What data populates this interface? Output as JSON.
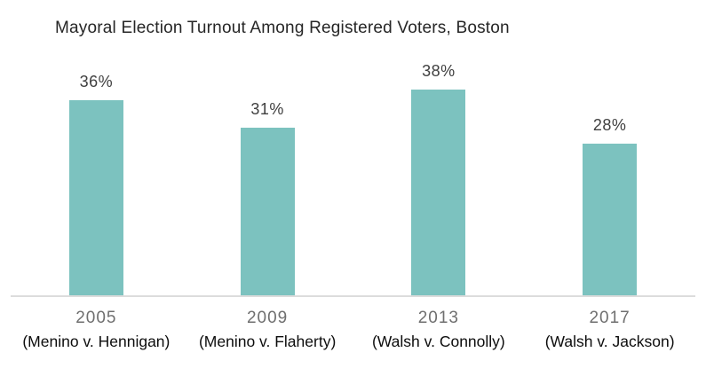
{
  "title": "Mayoral Election Turnout Among Registered Voters, Boston",
  "colors": {
    "bar": "#7cc2bf",
    "axis_line": "#dcdcdc",
    "title_text": "#262626",
    "value_text": "#3f3f3f",
    "year_text": "#6f6f6f",
    "matchup_text": "#0d0d0d",
    "background": "#ffffff"
  },
  "chart_data": {
    "type": "bar",
    "title": "Mayoral Election Turnout Among Registered Voters, Boston",
    "categories": [
      "2005",
      "2009",
      "2013",
      "2017"
    ],
    "subcategories": [
      "(Menino v. Hennigan)",
      "(Menino v. Flaherty)",
      "(Walsh v. Connolly)",
      "(Walsh v. Jackson)"
    ],
    "values": [
      36,
      31,
      38,
      28
    ],
    "value_labels": [
      "36%",
      "31%",
      "38%",
      "28%"
    ],
    "xlabel": "",
    "ylabel": "",
    "ylim": [
      0,
      40
    ],
    "grid": false,
    "legend": false,
    "y_axis_shown": false,
    "bar_color": "#7cc2bf"
  }
}
